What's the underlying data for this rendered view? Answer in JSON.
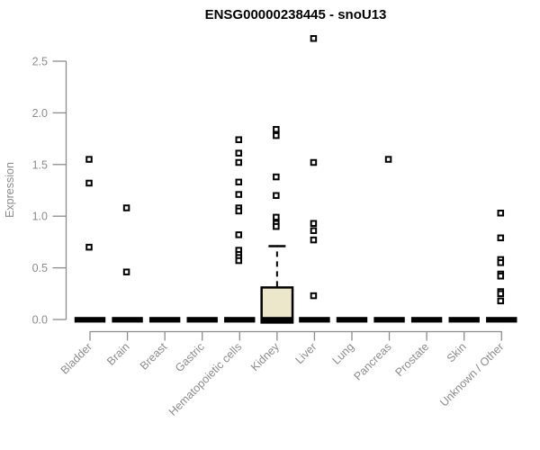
{
  "chart_data": {
    "type": "boxplot",
    "title": "ENSG00000238445 - snoU13",
    "xlabel": "",
    "ylabel": "Expression",
    "ylim": [
      0,
      2.75
    ],
    "yticks": [
      "0.0",
      "0.5",
      "1.0",
      "1.5",
      "2.0",
      "2.5"
    ],
    "grid": false,
    "legend": "none",
    "marker": "open-square",
    "colors": {
      "box_fill": "#ECE6CB",
      "box_stroke": "#000000",
      "zero_bar": "#000000",
      "point": "#000000",
      "axis": "#8C8C8C",
      "tick_label": "#8C8C8C",
      "title": "#000000"
    },
    "categories": [
      "Bladder",
      "Brain",
      "Breast",
      "Gastric",
      "Hematopoietic cells",
      "Kidney",
      "Liver",
      "Lung",
      "Pancreas",
      "Prostate",
      "Skin",
      "Unknown / Other"
    ],
    "series": [
      {
        "category": "Bladder",
        "median": 0,
        "points": [
          1.55,
          1.32,
          0.7
        ]
      },
      {
        "category": "Brain",
        "median": 0,
        "points": [
          1.08,
          0.46
        ]
      },
      {
        "category": "Breast",
        "median": 0,
        "points": []
      },
      {
        "category": "Gastric",
        "median": 0,
        "points": []
      },
      {
        "category": "Hematopoietic cells",
        "median": 0,
        "points": [
          1.74,
          1.61,
          1.52,
          1.33,
          1.21,
          1.08,
          1.05,
          0.82,
          0.67,
          0.63,
          0.6,
          0.57
        ]
      },
      {
        "category": "Kidney",
        "median": 0,
        "q1": 0,
        "q3": 0.31,
        "whisker_high": 0.71,
        "points": [
          1.84,
          1.78,
          1.38,
          1.2,
          0.99,
          0.93,
          0.9
        ]
      },
      {
        "category": "Liver",
        "median": 0,
        "points": [
          2.72,
          1.52,
          0.93,
          0.86,
          0.77,
          0.23
        ]
      },
      {
        "category": "Lung",
        "median": 0,
        "points": []
      },
      {
        "category": "Pancreas",
        "median": 0,
        "points": [
          1.55
        ]
      },
      {
        "category": "Prostate",
        "median": 0,
        "points": []
      },
      {
        "category": "Skin",
        "median": 0,
        "points": []
      },
      {
        "category": "Unknown / Other",
        "median": 0,
        "points": [
          1.03,
          0.79,
          0.58,
          0.55,
          0.44,
          0.42,
          0.27,
          0.25,
          0.18
        ]
      }
    ]
  }
}
